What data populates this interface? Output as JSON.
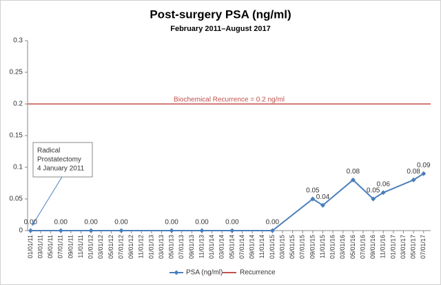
{
  "chart_data": {
    "type": "line",
    "title": "Post-surgery PSA (ng/ml)",
    "subtitle": "February 2011–August 2017",
    "categories": [
      "01/01/11",
      "03/01/11",
      "05/01/11",
      "07/01/11",
      "09/01/11",
      "11/01/11",
      "01/01/12",
      "03/01/12",
      "05/01/12",
      "07/01/12",
      "09/01/12",
      "11/01/12",
      "01/01/13",
      "03/01/13",
      "05/01/13",
      "07/01/13",
      "09/01/13",
      "11/01/13",
      "01/01/14",
      "03/01/14",
      "05/01/14",
      "07/01/14",
      "09/01/14",
      "11/01/14",
      "01/01/15",
      "03/01/15",
      "05/01/15",
      "07/01/15",
      "09/01/15",
      "11/01/15",
      "01/01/16",
      "03/01/16",
      "05/01/16",
      "07/01/16",
      "09/01/16",
      "11/01/16",
      "01/01/17",
      "03/01/17",
      "05/01/17",
      "07/01/17"
    ],
    "series": [
      {
        "name": "PSA (ng/ml)",
        "color": "#4a7ebb",
        "x": [
          "01/01/11",
          "07/01/11",
          "01/01/12",
          "07/01/12",
          "05/01/13",
          "11/01/13",
          "05/01/14",
          "01/01/15",
          "09/01/15",
          "11/01/15",
          "05/01/16",
          "09/01/16",
          "11/01/16",
          "05/01/17",
          "07/01/17"
        ],
        "values": [
          0,
          0,
          0,
          0,
          0,
          0,
          0,
          0,
          0.05,
          0.04,
          0.08,
          0.05,
          0.06,
          0.08,
          0.09
        ],
        "value_labels": [
          "0.00",
          "0.00",
          "0.00",
          "0.00",
          "0.00",
          "0.00",
          "0.00",
          "0.00",
          "0.05",
          "0.04",
          "0.08",
          "0.05",
          "0.06",
          "0.08",
          "0.09"
        ]
      }
    ],
    "reference_line": {
      "name": "Recurrence",
      "value": 0.2,
      "color": "#c0504d",
      "label": "Biochemical  Recurrence = 0.2 ng/ml"
    },
    "annotation": {
      "lines": [
        "Radical",
        "Prostatectomy",
        "4 January 2011"
      ]
    },
    "ylim": [
      0,
      0.3
    ],
    "yticks": [
      0,
      0.05,
      0.1,
      0.15,
      0.2,
      0.25,
      0.3
    ],
    "grid": false,
    "legend": "bottom"
  }
}
